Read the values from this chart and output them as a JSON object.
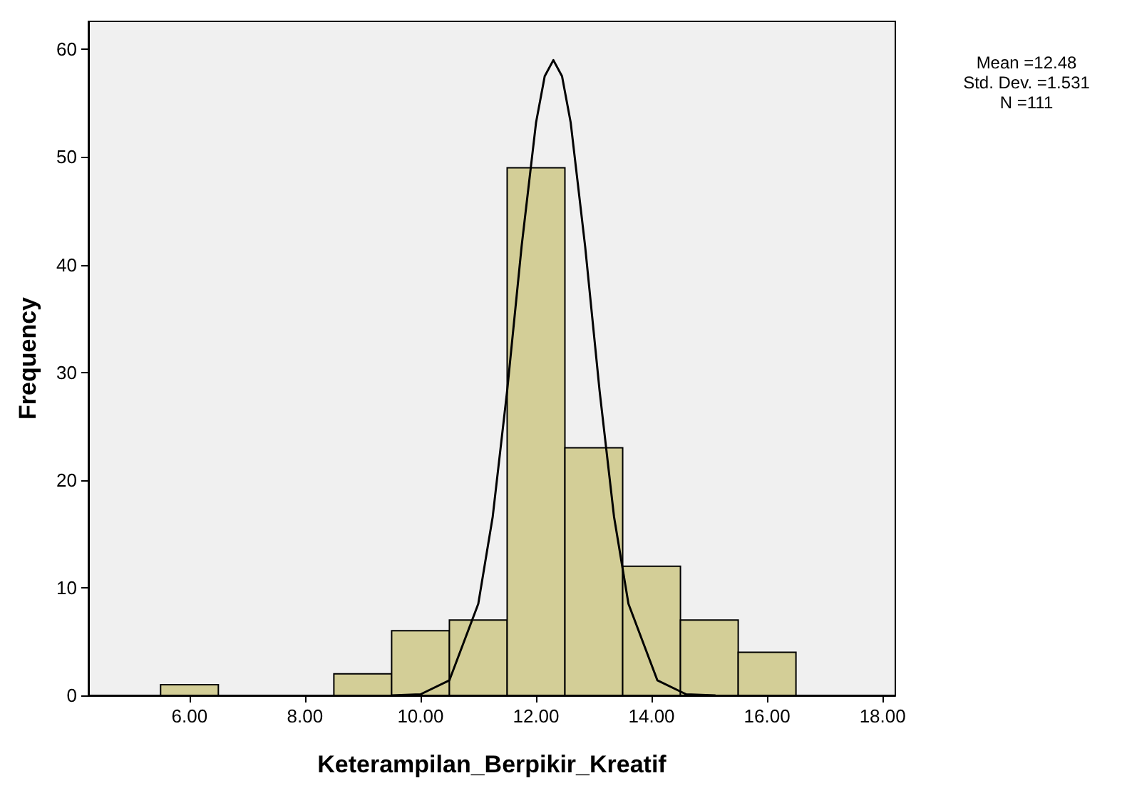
{
  "chart_data": {
    "type": "histogram",
    "xlabel": "Keterampilan_Berpikir_Kreatif",
    "ylabel": "Frequency",
    "bins": [
      5.5,
      6.5,
      7.5,
      8.5,
      9.5,
      10.5,
      11.5,
      12.5,
      13.5,
      14.5,
      15.5,
      16.5
    ],
    "values": [
      1,
      0,
      0,
      2,
      6,
      7,
      49,
      23,
      12,
      7,
      4
    ],
    "color": "#d3ce97",
    "series": [
      {
        "type": "line",
        "color": "#000000",
        "x": [
          9.5,
          10,
          10.5,
          11,
          11.25,
          11.5,
          11.75,
          12,
          12.15,
          12.3,
          12.45,
          12.6,
          12.85,
          13.1,
          13.35,
          13.6,
          14.1,
          14.6,
          15.1
        ],
        "values": [
          0,
          0.1,
          1.4,
          8.5,
          16.6,
          28.3,
          41.7,
          53.2,
          57.5,
          59,
          57.5,
          53.2,
          41.7,
          28.3,
          16.6,
          8.5,
          1.4,
          0.1,
          0
        ]
      }
    ],
    "xlim": [
      4.25,
      18.22
    ],
    "xticks": [
      {
        "value": 6,
        "label": "6.00"
      },
      {
        "value": 8,
        "label": "8.00"
      },
      {
        "value": 10,
        "label": "10.00"
      },
      {
        "value": 12,
        "label": "12.00"
      },
      {
        "value": 14,
        "label": "14.00"
      },
      {
        "value": 16,
        "label": "16.00"
      },
      {
        "value": 18,
        "label": "18.00"
      }
    ],
    "ylim": [
      0,
      62.6
    ],
    "yticks": [
      0,
      10,
      20,
      30,
      40,
      50,
      60
    ],
    "annotations": [
      "Mean =12.48",
      "Std. Dev. =1.531",
      "N =111"
    ],
    "grid": false,
    "marker": "none",
    "line_style": "solid"
  }
}
